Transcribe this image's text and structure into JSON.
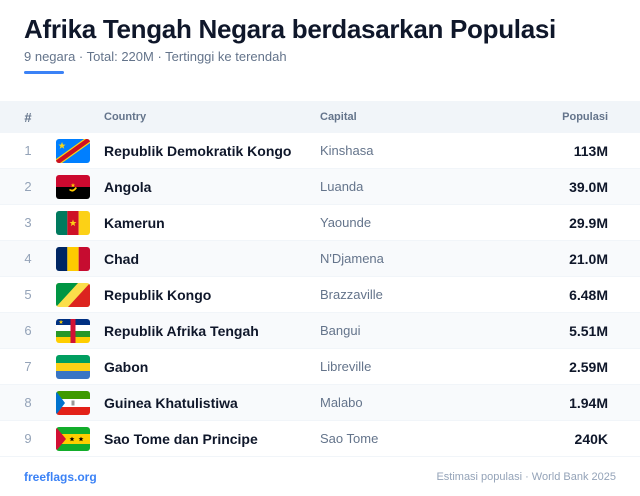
{
  "header": {
    "title": "Afrika Tengah Negara berdasarkan Populasi",
    "subtitle": "9 negara · Total: 220M · Tertinggi ke terendah"
  },
  "table": {
    "columns": {
      "num": "#",
      "country": "Country",
      "capital": "Capital",
      "population": "Populasi"
    },
    "rows": [
      {
        "rank": "1",
        "country": "Republik Demokratik Kongo",
        "capital": "Kinshasa",
        "population": "113M",
        "flag_icon": "cd-flag-icon"
      },
      {
        "rank": "2",
        "country": "Angola",
        "capital": "Luanda",
        "population": "39.0M",
        "flag_icon": "ao-flag-icon"
      },
      {
        "rank": "3",
        "country": "Kamerun",
        "capital": "Yaounde",
        "population": "29.9M",
        "flag_icon": "cm-flag-icon"
      },
      {
        "rank": "4",
        "country": "Chad",
        "capital": "N'Djamena",
        "population": "21.0M",
        "flag_icon": "td-flag-icon"
      },
      {
        "rank": "5",
        "country": "Republik Kongo",
        "capital": "Brazzaville",
        "population": "6.48M",
        "flag_icon": "cg-flag-icon"
      },
      {
        "rank": "6",
        "country": "Republik Afrika Tengah",
        "capital": "Bangui",
        "population": "5.51M",
        "flag_icon": "cf-flag-icon"
      },
      {
        "rank": "7",
        "country": "Gabon",
        "capital": "Libreville",
        "population": "2.59M",
        "flag_icon": "ga-flag-icon"
      },
      {
        "rank": "8",
        "country": "Guinea Khatulistiwa",
        "capital": "Malabo",
        "population": "1.94M",
        "flag_icon": "gq-flag-icon"
      },
      {
        "rank": "9",
        "country": "Sao Tome dan Principe",
        "capital": "Sao Tome",
        "population": "240K",
        "flag_icon": "st-flag-icon"
      }
    ]
  },
  "footer": {
    "site": "freeflags.org",
    "source": "Estimasi populasi · World Bank 2025"
  },
  "colors": {
    "accent": "#3b82f6",
    "header_bg": "#f1f5f9",
    "alt_row_bg": "#f8fafc"
  }
}
